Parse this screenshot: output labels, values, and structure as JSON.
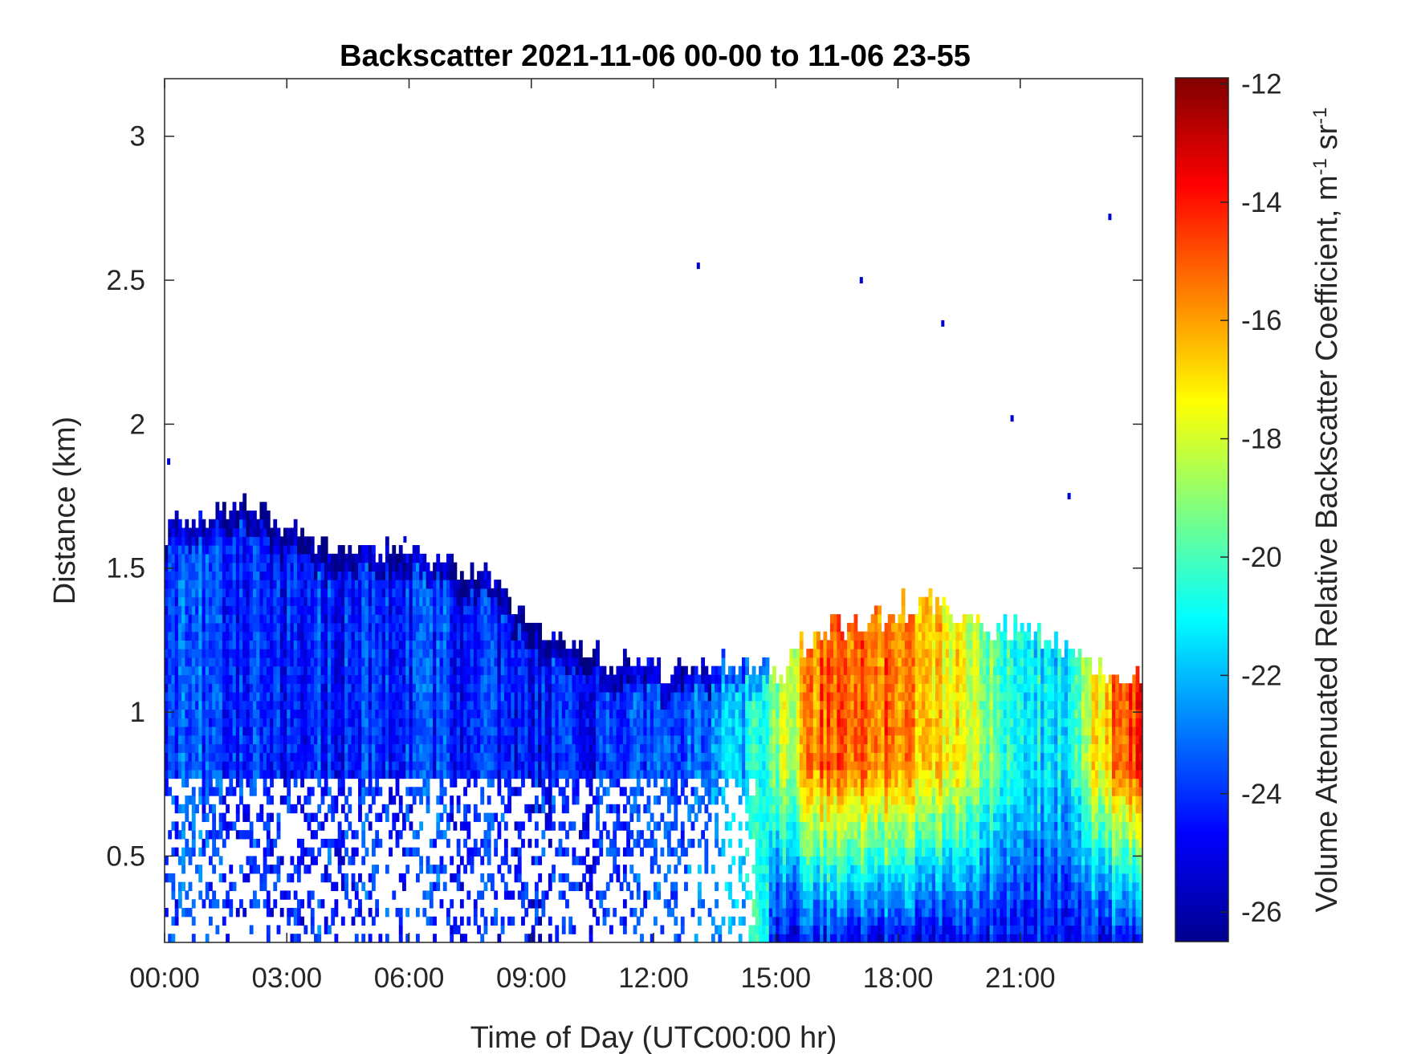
{
  "chart_data": {
    "type": "heatmap",
    "title": "Backscatter 2021-11-06 00-00 to 11-06 23-55",
    "xlabel": "Time of Day (UTC00:00 hr)",
    "ylabel": "Distance (km)",
    "colorbar_label": "Volume Attenuated Relative Backscatter Coefficient, m",
    "colorbar_label_sup1": "-1",
    "colorbar_label_mid": " sr",
    "colorbar_label_sup2": "-1",
    "xlim": [
      0,
      24
    ],
    "ylim": [
      0.2,
      3.2
    ],
    "x_ticks": [
      0,
      3,
      6,
      9,
      12,
      15,
      18,
      21
    ],
    "x_tick_labels": [
      "00:00",
      "03:00",
      "06:00",
      "09:00",
      "12:00",
      "15:00",
      "18:00",
      "21:00"
    ],
    "y_ticks": [
      0.5,
      1,
      1.5,
      2,
      2.5,
      3
    ],
    "y_tick_labels": [
      "0.5",
      "1",
      "1.5",
      "2",
      "2.5",
      "3"
    ],
    "clim": [
      -26.5,
      -11.9
    ],
    "colorbar_ticks": [
      -26,
      -24,
      -22,
      -20,
      -18,
      -16,
      -14,
      -12
    ],
    "colorbar_tick_labels": [
      "-26",
      "-24",
      "-22",
      "-20",
      "-18",
      "-16",
      "-14",
      "-12"
    ],
    "colormap": "jet",
    "grid": false,
    "layer_top_km": [
      [
        0.0,
        1.62
      ],
      [
        1.0,
        1.66
      ],
      [
        2.0,
        1.72
      ],
      [
        3.0,
        1.6
      ],
      [
        4.0,
        1.56
      ],
      [
        5.0,
        1.55
      ],
      [
        6.0,
        1.54
      ],
      [
        7.0,
        1.5
      ],
      [
        8.0,
        1.46
      ],
      [
        9.0,
        1.28
      ],
      [
        10.0,
        1.2
      ],
      [
        11.0,
        1.16
      ],
      [
        12.0,
        1.14
      ],
      [
        13.0,
        1.12
      ],
      [
        14.0,
        1.17
      ],
      [
        14.5,
        1.15
      ],
      [
        15.0,
        1.12
      ],
      [
        16.0,
        1.27
      ],
      [
        17.0,
        1.29
      ],
      [
        18.0,
        1.35
      ],
      [
        19.0,
        1.37
      ],
      [
        20.0,
        1.28
      ],
      [
        21.0,
        1.27
      ],
      [
        22.0,
        1.22
      ],
      [
        23.0,
        1.12
      ],
      [
        24.0,
        1.12
      ]
    ],
    "mean_backscatter_by_time": [
      [
        0.0,
        -23.5
      ],
      [
        3.0,
        -24.2
      ],
      [
        6.0,
        -24.0
      ],
      [
        9.0,
        -24.4
      ],
      [
        12.0,
        -24.0
      ],
      [
        14.0,
        -22.3
      ],
      [
        15.0,
        -19.0
      ],
      [
        16.0,
        -15.4
      ],
      [
        17.0,
        -15.0
      ],
      [
        18.0,
        -15.6
      ],
      [
        19.0,
        -16.5
      ],
      [
        20.0,
        -18.8
      ],
      [
        21.0,
        -21.0
      ],
      [
        22.0,
        -21.5
      ],
      [
        23.0,
        -16.5
      ],
      [
        24.0,
        -13.5
      ]
    ],
    "isolated_points": [
      [
        0.1,
        1.87
      ],
      [
        13.1,
        2.55
      ],
      [
        17.1,
        2.5
      ],
      [
        19.1,
        2.35
      ],
      [
        20.8,
        2.02
      ],
      [
        22.2,
        1.75
      ],
      [
        23.2,
        2.72
      ],
      [
        5.9,
        1.6
      ]
    ]
  }
}
